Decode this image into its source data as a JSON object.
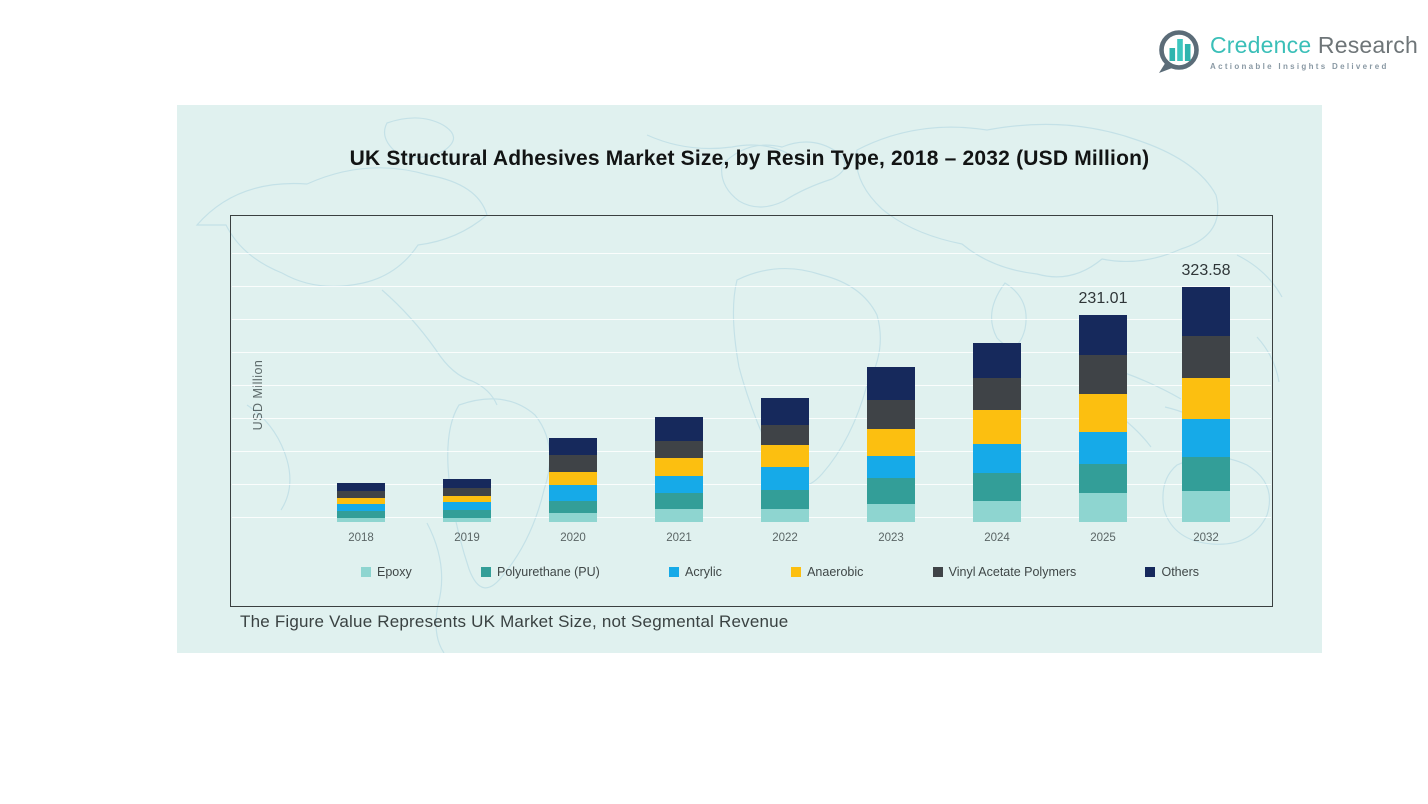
{
  "logo": {
    "brand_primary": "Credence",
    "brand_secondary": " Research",
    "tagline": "Actionable Insights Delivered",
    "accent_color": "#3abfb8",
    "secondary_color": "#6e7578",
    "icon": "bar-chart-speech-bubble"
  },
  "figure": {
    "title": "UK Structural Adhesives Market Size, by Resin Type, 2018 – 2032 (USD Million)",
    "footnote": "The Figure Value Represents UK Market Size, not Segmental Revenue"
  },
  "chart_data": {
    "type": "bar",
    "stacked": true,
    "title": "UK Structural Adhesives Market Size, by Resin Type, 2018 – 2032 (USD Million)",
    "xlabel": "",
    "ylabel": "USD Million",
    "categories": [
      "2018",
      "2019",
      "2020",
      "2021",
      "2022",
      "2023",
      "2024",
      "2025",
      "2032"
    ],
    "series": [
      {
        "name": "Epoxy",
        "color": "#8ed5d0",
        "values": [
          4.0,
          4.5,
          10.0,
          14.5,
          15.0,
          20.0,
          23.5,
          32.5,
          42.4
        ]
      },
      {
        "name": "Polyurethane (PU)",
        "color": "#339e98",
        "values": [
          8.0,
          8.5,
          13.5,
          18.0,
          20.5,
          29.0,
          31.5,
          32.5,
          47.4
        ]
      },
      {
        "name": "Acrylic",
        "color": "#16aae8",
        "values": [
          8.0,
          9.0,
          18.0,
          19.0,
          26.0,
          24.5,
          32.5,
          36.0,
          52.2
        ]
      },
      {
        "name": "Anaerobic",
        "color": "#fcbf10",
        "values": [
          6.5,
          7.0,
          14.5,
          20.0,
          24.0,
          30.0,
          37.0,
          41.5,
          56.2
        ]
      },
      {
        "name": "Vinyl Acetate Polymers",
        "color": "#3f4347",
        "values": [
          8.0,
          9.0,
          19.0,
          19.0,
          22.5,
          32.5,
          36.0,
          43.5,
          58.8
        ]
      },
      {
        "name": "Others",
        "color": "#16295c",
        "values": [
          9.5,
          10.5,
          19.0,
          26.5,
          31.0,
          37.5,
          39.5,
          45.01,
          66.58
        ]
      }
    ],
    "totals": [
      44.0,
      48.5,
      94.0,
      117.0,
      139.0,
      173.5,
      200.0,
      231.01,
      323.58
    ],
    "data_labels": {
      "2025": "231.01",
      "2032": "323.58"
    },
    "legend_position": "bottom-inside",
    "grid": true,
    "y_axis_tick_labels_shown": false,
    "layout_hints": {
      "note": "source figure draws the 2032 bar non-proportionally (compressed)",
      "bar_display_scale": [
        1,
        1,
        1,
        1,
        1,
        1,
        1,
        1,
        0.81
      ],
      "background": "#e0f1ef",
      "map_watermark": true
    }
  }
}
